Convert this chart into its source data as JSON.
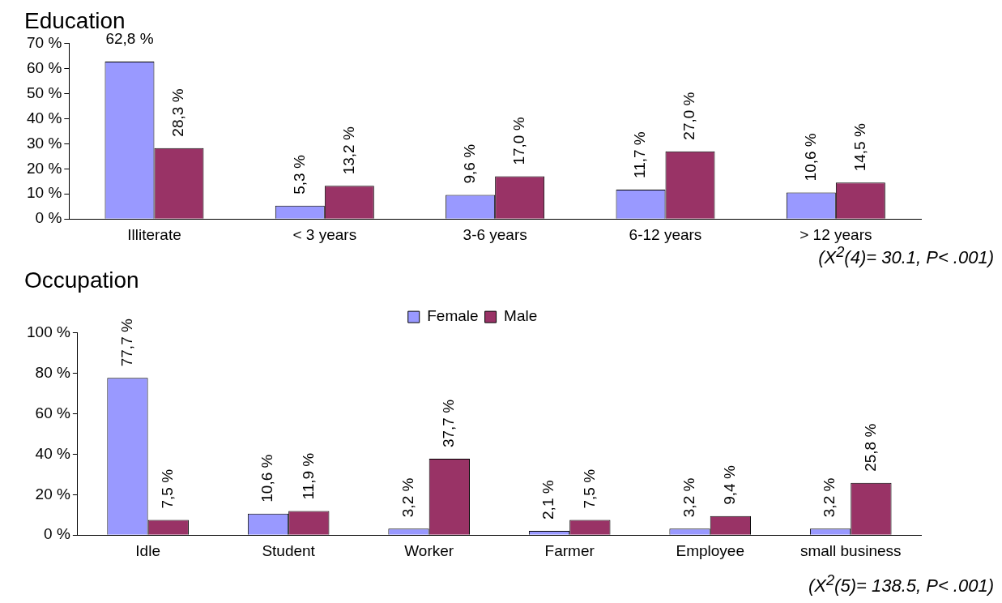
{
  "chart_data": [
    {
      "type": "bar",
      "title": "Education",
      "categories": [
        "Illiterate",
        "< 3 years",
        "3-6 years",
        "6-12 years",
        "> 12 years"
      ],
      "series": [
        {
          "color": "#9999ff",
          "values": [
            62.8,
            5.3,
            9.6,
            11.7,
            10.6
          ],
          "value_labels": [
            "62,8 %",
            "5,3 %",
            "9,6 %",
            "11,7 %",
            "10,6 %"
          ]
        },
        {
          "color": "#993366",
          "values": [
            28.3,
            13.2,
            17.0,
            27.0,
            14.5
          ],
          "value_labels": [
            "28,3 %",
            "13,2 %",
            "17,0 %",
            "27,0 %",
            "14,5 %"
          ]
        }
      ],
      "ylim": [
        0,
        70
      ],
      "yticks": [
        {
          "value": 0,
          "label": "0 %"
        },
        {
          "value": 10,
          "label": "10 %"
        },
        {
          "value": 20,
          "label": "20 %"
        },
        {
          "value": 30,
          "label": "30 %"
        },
        {
          "value": 40,
          "label": "40 %"
        },
        {
          "value": 50,
          "label": "50 %"
        },
        {
          "value": 60,
          "label": "60 %"
        },
        {
          "value": 70,
          "label": "70 %"
        }
      ],
      "grid": false,
      "legend": false,
      "annotations": [
        "(X$^{2}$(4)= 30.1, P< .001)"
      ]
    },
    {
      "type": "bar",
      "title": "Occupation",
      "categories": [
        "Idle",
        "Student",
        "Worker",
        "Farmer",
        "Employee",
        "small business"
      ],
      "series": [
        {
          "name": "Female",
          "color": "#9999ff",
          "values": [
            77.7,
            10.6,
            3.2,
            2.1,
            3.2,
            3.2
          ],
          "value_labels": [
            "77,7 %",
            "10,6 %",
            "3,2 %",
            "2,1 %",
            "3,2 %",
            "3,2 %"
          ]
        },
        {
          "name": "Male",
          "color": "#993366",
          "values": [
            7.5,
            11.9,
            37.7,
            7.5,
            9.4,
            25.8
          ],
          "value_labels": [
            "7,5 %",
            "11,9 %",
            "37,7 %",
            "7,5 %",
            "9,4 %",
            "25,8 %"
          ]
        }
      ],
      "ylim": [
        0,
        100
      ],
      "yticks": [
        {
          "value": 0,
          "label": "0 %"
        },
        {
          "value": 20,
          "label": "20 %"
        },
        {
          "value": 40,
          "label": "40 %"
        },
        {
          "value": 60,
          "label": "60 %"
        },
        {
          "value": 80,
          "label": "80 %"
        },
        {
          "value": 100,
          "label": "100 %"
        }
      ],
      "grid": false,
      "legend": "top",
      "annotations": [
        "(X$^{2}$(5)= 138.5, P< .001)"
      ]
    }
  ]
}
